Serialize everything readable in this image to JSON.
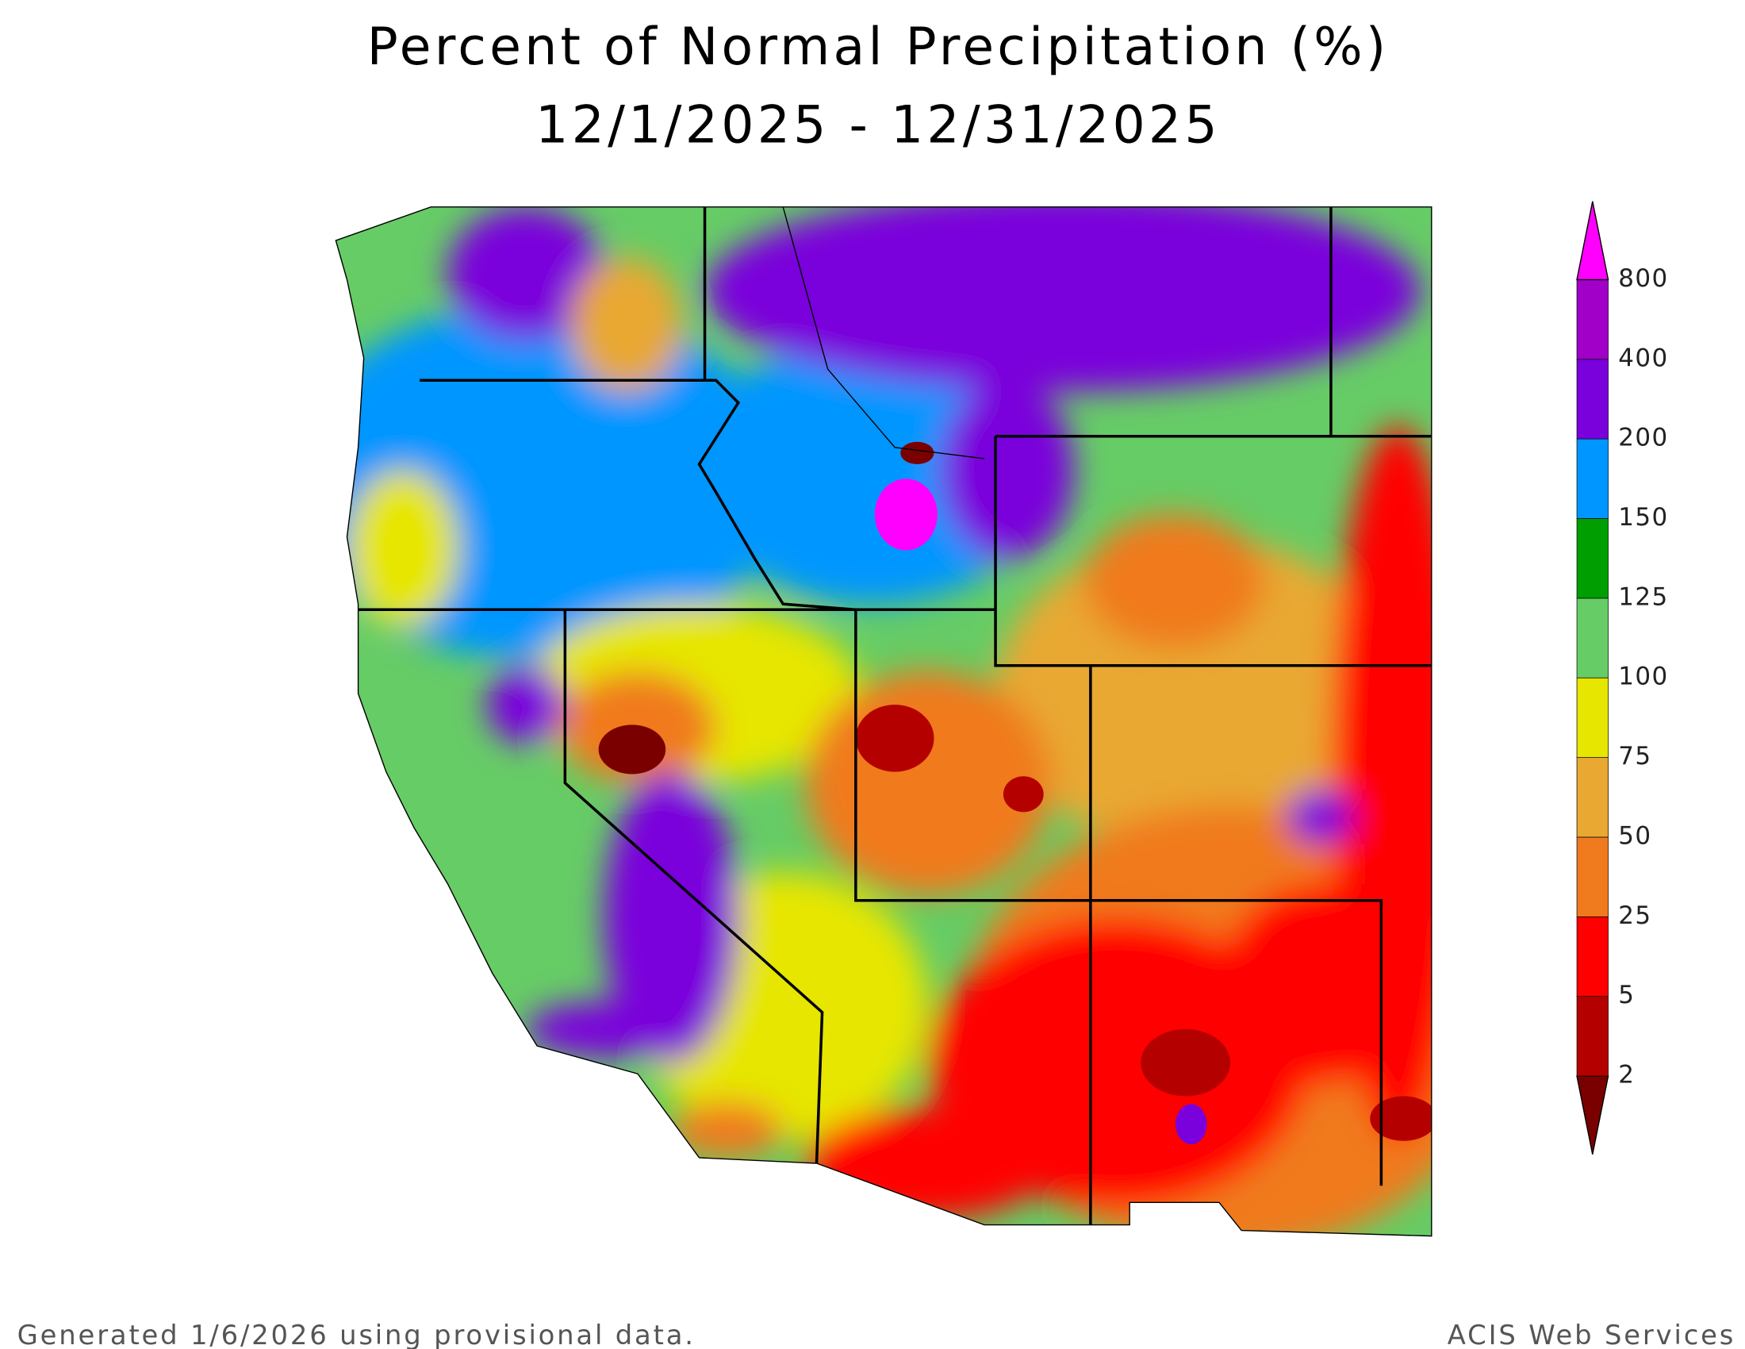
{
  "header": {
    "title": "Percent of Normal Precipitation (%)",
    "subtitle": "12/1/2025 - 12/31/2025"
  },
  "legend": {
    "ticks": [
      2,
      5,
      25,
      50,
      75,
      100,
      125,
      150,
      200,
      400,
      800
    ],
    "colors": [
      "#7a0000",
      "#b50000",
      "#ff0000",
      "#f07a1e",
      "#e8a832",
      "#e6e600",
      "#66cc66",
      "#009e00",
      "#0096ff",
      "#7a00dc",
      "#a000c8",
      "#ff00ff"
    ]
  },
  "footer": {
    "note": "Generated 1/6/2026 using provisional data.",
    "source": "ACIS Web Services"
  }
}
